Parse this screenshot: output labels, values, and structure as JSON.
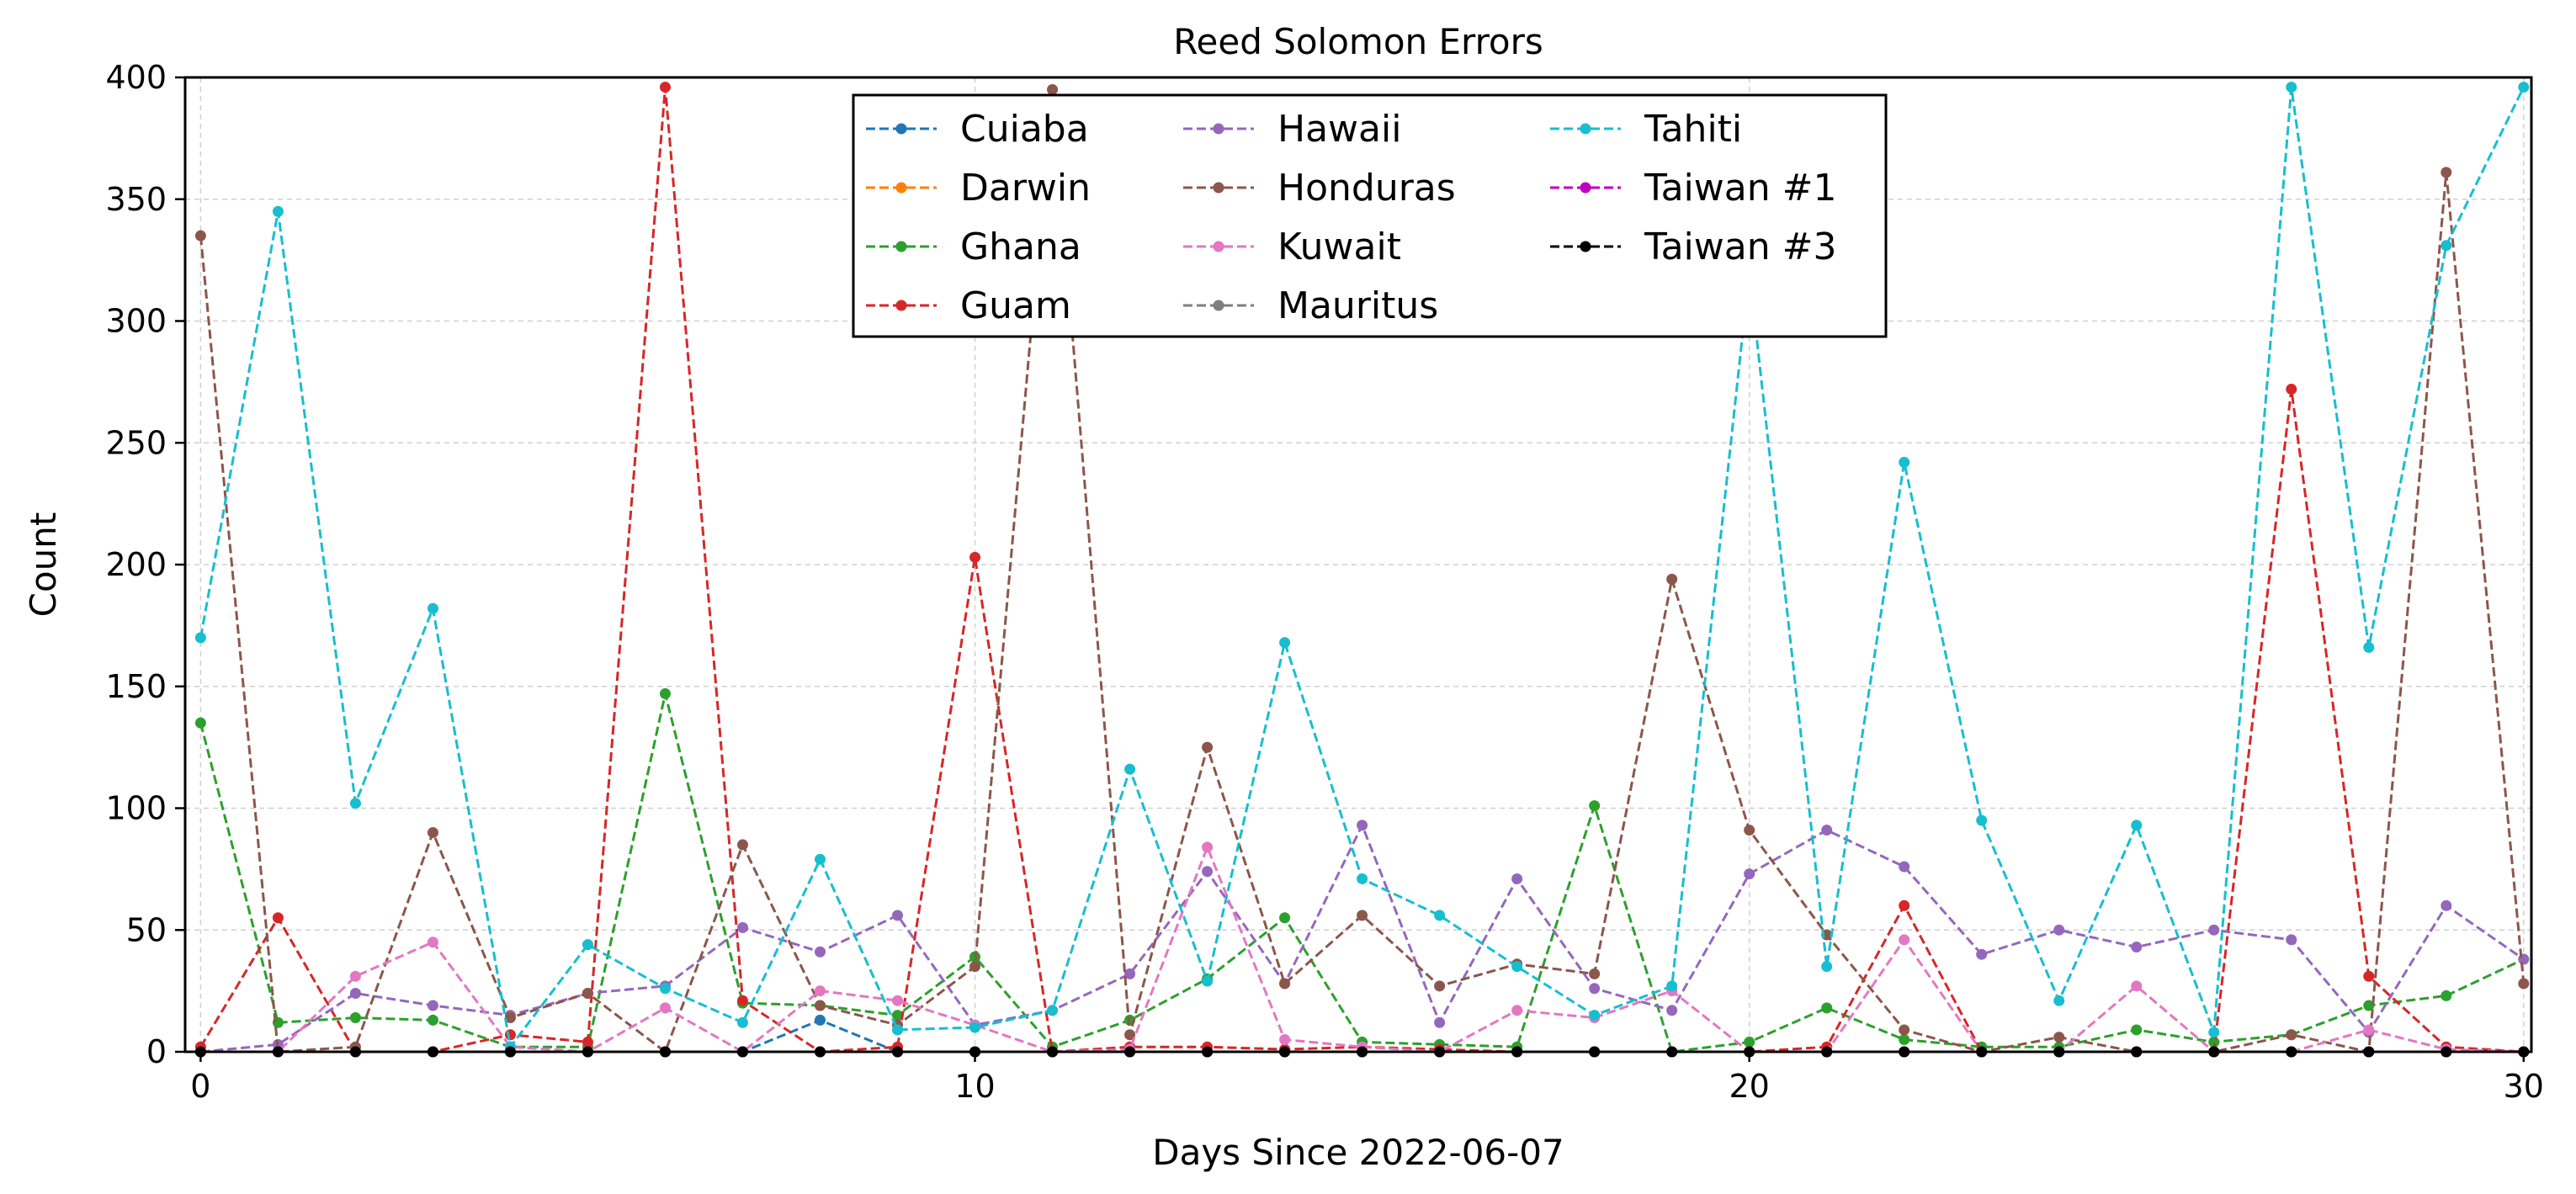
{
  "chart_data": {
    "type": "line",
    "title": "Reed Solomon Errors",
    "xlabel": "Days Since 2022-06-07",
    "ylabel": "Count",
    "xlim": [
      -0.2,
      30.1
    ],
    "ylim": [
      0,
      400
    ],
    "xticks": [
      0,
      10,
      20,
      30
    ],
    "yticks": [
      0,
      50,
      100,
      150,
      200,
      250,
      300,
      350,
      400
    ],
    "grid": true,
    "legend_position": "top-center",
    "legend_columns": 3,
    "x": [
      0,
      1,
      2,
      3,
      4,
      5,
      6,
      7,
      8,
      9,
      10,
      11,
      12,
      13,
      14,
      15,
      16,
      17,
      18,
      19,
      20,
      21,
      22,
      23,
      24,
      25,
      26,
      27,
      28,
      29,
      30
    ],
    "series": [
      {
        "name": "Cuiaba",
        "color": "#1f77b4",
        "values": [
          0,
          0,
          0,
          0,
          0,
          0,
          0,
          0,
          13,
          0,
          0,
          0,
          0,
          0,
          0,
          0,
          0,
          0,
          0,
          0,
          0,
          0,
          0,
          0,
          0,
          0,
          0,
          0,
          0,
          0,
          0
        ]
      },
      {
        "name": "Darwin",
        "color": "#ff7f0e",
        "values": [
          0,
          0,
          0,
          0,
          0,
          0,
          0,
          0,
          0,
          0,
          0,
          0,
          0,
          0,
          0,
          0,
          0,
          0,
          0,
          0,
          0,
          0,
          0,
          0,
          0,
          0,
          0,
          0,
          0,
          0,
          0
        ]
      },
      {
        "name": "Ghana",
        "color": "#2ca02c",
        "values": [
          135,
          12,
          14,
          13,
          2,
          2,
          147,
          20,
          19,
          15,
          39,
          2,
          13,
          30,
          55,
          4,
          3,
          2,
          101,
          0,
          4,
          18,
          5,
          2,
          2,
          9,
          4,
          7,
          19,
          23,
          38
        ]
      },
      {
        "name": "Guam",
        "color": "#d62728",
        "values": [
          2,
          55,
          0,
          0,
          7,
          4,
          396,
          21,
          0,
          2,
          203,
          0,
          2,
          2,
          1,
          2,
          1,
          0,
          0,
          0,
          0,
          2,
          60,
          0,
          0,
          0,
          0,
          272,
          31,
          2,
          0
        ]
      },
      {
        "name": "Hawaii",
        "color": "#9467bd",
        "values": [
          0,
          3,
          24,
          19,
          15,
          24,
          27,
          51,
          41,
          56,
          11,
          17,
          32,
          74,
          28,
          93,
          12,
          71,
          26,
          17,
          73,
          91,
          76,
          40,
          50,
          43,
          50,
          46,
          8,
          60,
          38
        ]
      },
      {
        "name": "Honduras",
        "color": "#8c564b",
        "values": [
          335,
          0,
          2,
          90,
          14,
          24,
          0,
          85,
          19,
          11,
          35,
          395,
          7,
          125,
          28,
          56,
          27,
          36,
          32,
          194,
          91,
          48,
          9,
          0,
          6,
          0,
          0,
          7,
          0,
          361,
          28
        ]
      },
      {
        "name": "Kuwait",
        "color": "#e377c2",
        "values": [
          0,
          0,
          31,
          45,
          2,
          0,
          18,
          0,
          25,
          21,
          11,
          0,
          1,
          84,
          5,
          2,
          0,
          17,
          14,
          25,
          0,
          0,
          46,
          0,
          0,
          27,
          0,
          0,
          9,
          1,
          0
        ]
      },
      {
        "name": "Mauritus",
        "color": "#7f7f7f",
        "values": [
          0,
          0,
          0,
          0,
          0,
          0,
          0,
          0,
          0,
          0,
          0,
          0,
          0,
          0,
          0,
          0,
          0,
          0,
          0,
          0,
          0,
          0,
          0,
          0,
          0,
          0,
          0,
          0,
          0,
          0,
          0
        ]
      },
      {
        "name": "Tahiti",
        "color": "#17becf",
        "values": [
          170,
          345,
          102,
          182,
          2,
          44,
          26,
          12,
          79,
          9,
          10,
          17,
          116,
          29,
          168,
          71,
          56,
          35,
          15,
          27,
          320,
          35,
          242,
          95,
          21,
          93,
          8,
          396,
          166,
          331,
          396
        ]
      },
      {
        "name": "Taiwan #1",
        "color": "#c000c0",
        "values": [
          0,
          0,
          0,
          0,
          0,
          0,
          0,
          0,
          0,
          0,
          0,
          0,
          0,
          0,
          0,
          0,
          0,
          0,
          0,
          0,
          0,
          0,
          0,
          0,
          0,
          0,
          0,
          0,
          0,
          0,
          0
        ]
      },
      {
        "name": "Taiwan #3",
        "color": "#000000",
        "values": [
          0,
          0,
          0,
          0,
          0,
          0,
          0,
          0,
          0,
          0,
          0,
          0,
          0,
          0,
          0,
          0,
          0,
          0,
          0,
          0,
          0,
          0,
          0,
          0,
          0,
          0,
          0,
          0,
          0,
          0,
          0
        ]
      }
    ]
  }
}
